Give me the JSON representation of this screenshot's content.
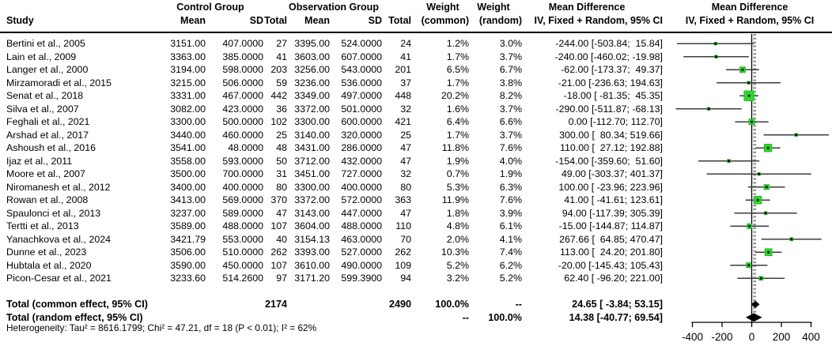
{
  "header": {
    "control_group": "Control Group",
    "observation_group": "Observation Group",
    "weight_common": "Weight",
    "weight_random": "Weight",
    "md_text_title": "Mean Difference",
    "md_plot_title": "Mean Difference",
    "study": "Study",
    "c_mean": "Mean",
    "c_sd": "SD",
    "c_total": "Total",
    "o_mean": "Mean",
    "o_sd": "SD",
    "o_total": "Total",
    "weight_common_sub": "(common)",
    "weight_random_sub": "(random)",
    "md_text_sub": "IV, Fixed + Random, 95% CI",
    "md_plot_sub": "IV, Fixed + Random, 95% CI"
  },
  "rows": [
    {
      "study": "Bertini et al., 2005",
      "cmean": "3151.00",
      "csd": "407.0000",
      "ctotal": "27",
      "omean": "3395.00",
      "osd": "524.0000",
      "ototal": "24",
      "wc": "1.2%",
      "wr": "3.0%",
      "md": "-244.00 [-503.84;  15.84]",
      "est": -244.0,
      "lo": -503.84,
      "hi": 15.84,
      "w": 1.2
    },
    {
      "study": "Lain et al., 2009",
      "cmean": "3363.00",
      "csd": "385.0000",
      "ctotal": "41",
      "omean": "3603.00",
      "osd": "607.0000",
      "ototal": "41",
      "wc": "1.7%",
      "wr": "3.7%",
      "md": "-240.00 [-460.02; -19.98]",
      "est": -240.0,
      "lo": -460.02,
      "hi": -19.98,
      "w": 1.7
    },
    {
      "study": "Langer et al., 2000",
      "cmean": "3194.00",
      "csd": "598.0000",
      "ctotal": "203",
      "omean": "3256.00",
      "osd": "543.0000",
      "ototal": "201",
      "wc": "6.5%",
      "wr": "6.7%",
      "md": " -62.00 [-173.37;  49.37]",
      "est": -62.0,
      "lo": -173.37,
      "hi": 49.37,
      "w": 6.5
    },
    {
      "study": "Mirzamoradi et al., 2015",
      "cmean": "3215.00",
      "csd": "506.0000",
      "ctotal": "59",
      "omean": "3236.00",
      "osd": "536.0000",
      "ototal": "37",
      "wc": "1.7%",
      "wr": "3.8%",
      "md": " -21.00 [-236.63; 194.63]",
      "est": -21.0,
      "lo": -236.63,
      "hi": 194.63,
      "w": 1.7
    },
    {
      "study": "Senat et al., 2018",
      "cmean": "3331.00",
      "csd": "467.0000",
      "ctotal": "442",
      "omean": "3349.00",
      "osd": "497.0000",
      "ototal": "448",
      "wc": "20.2%",
      "wr": "8.2%",
      "md": " -18.00 [ -81.35;  45.35]",
      "est": -18.0,
      "lo": -81.35,
      "hi": 45.35,
      "w": 20.2
    },
    {
      "study": "Silva et al., 2007",
      "cmean": "3082.00",
      "csd": "423.0000",
      "ctotal": "36",
      "omean": "3372.00",
      "osd": "501.0000",
      "ototal": "32",
      "wc": "1.6%",
      "wr": "3.7%",
      "md": "-290.00 [-511.87; -68.13]",
      "est": -290.0,
      "lo": -511.87,
      "hi": -68.13,
      "w": 1.6
    },
    {
      "study": "Feghali et al., 2021",
      "cmean": "3300.00",
      "csd": "500.0000",
      "ctotal": "102",
      "omean": "3300.00",
      "osd": "600.0000",
      "ototal": "421",
      "wc": "6.4%",
      "wr": "6.6%",
      "md": "   0.00 [-112.70; 112.70]",
      "est": 0.0,
      "lo": -112.7,
      "hi": 112.7,
      "w": 6.4
    },
    {
      "study": "Arshad et al., 2017",
      "cmean": "3440.00",
      "csd": "460.0000",
      "ctotal": "25",
      "omean": "3140.00",
      "osd": "320.0000",
      "ototal": "25",
      "wc": "1.7%",
      "wr": "3.7%",
      "md": " 300.00 [  80.34; 519.66]",
      "est": 300.0,
      "lo": 80.34,
      "hi": 519.66,
      "w": 1.7
    },
    {
      "study": "Ashoush et al., 2016",
      "cmean": "3541.00",
      "csd": "48.0000",
      "ctotal": "48",
      "omean": "3431.00",
      "osd": "286.0000",
      "ototal": "47",
      "wc": "11.8%",
      "wr": "7.6%",
      "md": " 110.00 [  27.12; 192.88]",
      "est": 110.0,
      "lo": 27.12,
      "hi": 192.88,
      "w": 11.8
    },
    {
      "study": "Ijaz et al., 2011",
      "cmean": "3558.00",
      "csd": "593.0000",
      "ctotal": "50",
      "omean": "3712.00",
      "osd": "432.0000",
      "ototal": "47",
      "wc": "1.9%",
      "wr": "4.0%",
      "md": "-154.00 [-359.60;  51.60]",
      "est": -154.0,
      "lo": -359.6,
      "hi": 51.6,
      "w": 1.9
    },
    {
      "study": "Moore et al., 2007",
      "cmean": "3500.00",
      "csd": "700.0000",
      "ctotal": "31",
      "omean": "3451.00",
      "osd": "727.0000",
      "ototal": "32",
      "wc": "0.7%",
      "wr": "1.9%",
      "md": "  49.00 [-303.37; 401.37]",
      "est": 49.0,
      "lo": -303.37,
      "hi": 401.37,
      "w": 0.7
    },
    {
      "study": "Niromanesh et al., 2012",
      "cmean": "3400.00",
      "csd": "400.0000",
      "ctotal": "80",
      "omean": "3300.00",
      "osd": "400.0000",
      "ototal": "80",
      "wc": "5.3%",
      "wr": "6.3%",
      "md": " 100.00 [ -23.96; 223.96]",
      "est": 100.0,
      "lo": -23.96,
      "hi": 223.96,
      "w": 5.3
    },
    {
      "study": "Rowan et al., 2008",
      "cmean": "3413.00",
      "csd": "569.0000",
      "ctotal": "370",
      "omean": "3372.00",
      "osd": "572.0000",
      "ototal": "363",
      "wc": "11.9%",
      "wr": "7.6%",
      "md": "  41.00 [ -41.61; 123.61]",
      "est": 41.0,
      "lo": -41.61,
      "hi": 123.61,
      "w": 11.9
    },
    {
      "study": "Spaulonci et al., 2013",
      "cmean": "3237.00",
      "csd": "589.0000",
      "ctotal": "47",
      "omean": "3143.00",
      "osd": "447.0000",
      "ototal": "47",
      "wc": "1.8%",
      "wr": "3.9%",
      "md": "  94.00 [-117.39; 305.39]",
      "est": 94.0,
      "lo": -117.39,
      "hi": 305.39,
      "w": 1.8
    },
    {
      "study": "Tertti et al., 2013",
      "cmean": "3589.00",
      "csd": "488.0000",
      "ctotal": "107",
      "omean": "3604.00",
      "osd": "488.0000",
      "ototal": "110",
      "wc": "4.8%",
      "wr": "6.1%",
      "md": " -15.00 [-144.87; 114.87]",
      "est": -15.0,
      "lo": -144.87,
      "hi": 114.87,
      "w": 4.8
    },
    {
      "study": "Yanachkova et al., 2024",
      "cmean": "3421.79",
      "csd": "553.0000",
      "ctotal": "40",
      "omean": "3154.13",
      "osd": "463.0000",
      "ototal": "70",
      "wc": "2.0%",
      "wr": "4.1%",
      "md": " 267.66 [  64.85; 470.47]",
      "est": 267.66,
      "lo": 64.85,
      "hi": 470.47,
      "w": 2.0
    },
    {
      "study": "Dunne et al., 2023",
      "cmean": "3506.00",
      "csd": "510.0000",
      "ctotal": "262",
      "omean": "3393.00",
      "osd": "527.0000",
      "ototal": "262",
      "wc": "10.3%",
      "wr": "7.4%",
      "md": " 113.00 [  24.20; 201.80]",
      "est": 113.0,
      "lo": 24.2,
      "hi": 201.8,
      "w": 10.3
    },
    {
      "study": "Hubtala et al., 2020",
      "cmean": "3590.00",
      "csd": "450.0000",
      "ctotal": "107",
      "omean": "3610.00",
      "osd": "490.0000",
      "ototal": "109",
      "wc": "5.2%",
      "wr": "6.2%",
      "md": " -20.00 [-145.43; 105.43]",
      "est": -20.0,
      "lo": -145.43,
      "hi": 105.43,
      "w": 5.2
    },
    {
      "study": "Picon-Cesar et al., 2021",
      "cmean": "3233.60",
      "csd": "514.2600",
      "ctotal": "97",
      "omean": "3171.20",
      "osd": "599.3900",
      "ototal": "94",
      "wc": "3.2%",
      "wr": "5.2%",
      "md": "  62.40 [ -96.20; 221.00]",
      "est": 62.4,
      "lo": -96.2,
      "hi": 221.0,
      "w": 3.2
    }
  ],
  "totals": {
    "common": {
      "label": "Total (common effect, 95% CI)",
      "ctotal": "2174",
      "ototal": "2490",
      "wc": "100.0%",
      "wr": "--",
      "md": "24.65 [ -3.84; 53.15]",
      "est": 24.65,
      "lo": -3.84,
      "hi": 53.15
    },
    "random": {
      "label": "Total (random effect, 95% CI)",
      "wc": "--",
      "wr": "100.0%",
      "md": "14.38 [-40.77; 69.54]",
      "est": 14.38,
      "lo": -40.77,
      "hi": 69.54
    }
  },
  "heterogeneity": "Heterogeneity: Tau² = 8616.1799; Chi² = 47.21, df = 18 (P < 0.01); I² = 62%",
  "axis": {
    "ticks": [
      "-400",
      "-200",
      "0",
      "200",
      "400"
    ],
    "tick_values": [
      -400,
      -200,
      0,
      200,
      400
    ]
  },
  "colors": {
    "square": "#2ED42E",
    "square_border": "#14B414",
    "ci_line": "#3d3d3d",
    "diamond": "#000000",
    "ref_line": "#000000",
    "dashed_line": "#3a3a3a"
  },
  "chart_data": {
    "type": "scatter",
    "subtype": "forest-plot",
    "title": "Mean Difference, IV, Fixed + Random, 95% CI",
    "xlabel": "",
    "xlim": [
      -400,
      400
    ],
    "x_ticks": [
      -400,
      -200,
      0,
      200,
      400
    ],
    "reference_line": 0,
    "studies": [
      "Bertini et al., 2005",
      "Lain et al., 2009",
      "Langer et al., 2000",
      "Mirzamoradi et al., 2015",
      "Senat et al., 2018",
      "Silva et al., 2007",
      "Feghali et al., 2021",
      "Arshad et al., 2017",
      "Ashoush et al., 2016",
      "Ijaz et al., 2011",
      "Moore et al., 2007",
      "Niromanesh et al., 2012",
      "Rowan et al., 2008",
      "Spaulonci et al., 2013",
      "Tertti et al., 2013",
      "Yanachkova et al., 2024",
      "Dunne et al., 2023",
      "Hubtala et al., 2020",
      "Picon-Cesar et al., 2021"
    ],
    "mean_difference": [
      -244.0,
      -240.0,
      -62.0,
      -21.0,
      -18.0,
      -290.0,
      0.0,
      300.0,
      110.0,
      -154.0,
      49.0,
      100.0,
      41.0,
      94.0,
      -15.0,
      267.66,
      113.0,
      -20.0,
      62.4
    ],
    "ci_lower": [
      -503.84,
      -460.02,
      -173.37,
      -236.63,
      -81.35,
      -511.87,
      -112.7,
      80.34,
      27.12,
      -359.6,
      -303.37,
      -23.96,
      -41.61,
      -117.39,
      -144.87,
      64.85,
      24.2,
      -145.43,
      -96.2
    ],
    "ci_upper": [
      15.84,
      -19.98,
      49.37,
      194.63,
      45.35,
      -68.13,
      112.7,
      519.66,
      192.88,
      51.6,
      401.37,
      223.96,
      123.61,
      305.39,
      114.87,
      470.47,
      201.8,
      105.43,
      221.0
    ],
    "weight_common_pct": [
      1.2,
      1.7,
      6.5,
      1.7,
      20.2,
      1.6,
      6.4,
      1.7,
      11.8,
      1.9,
      0.7,
      5.3,
      11.9,
      1.8,
      4.8,
      2.0,
      10.3,
      5.2,
      3.2
    ],
    "weight_random_pct": [
      3.0,
      3.7,
      6.7,
      3.8,
      8.2,
      3.7,
      6.6,
      3.7,
      7.6,
      4.0,
      1.9,
      6.3,
      7.6,
      3.9,
      6.1,
      4.1,
      7.4,
      6.2,
      5.2
    ],
    "summaries": [
      {
        "name": "Total (common effect, 95% CI)",
        "mean": 24.65,
        "ci": [
          -3.84,
          53.15
        ]
      },
      {
        "name": "Total (random effect, 95% CI)",
        "mean": 14.38,
        "ci": [
          -40.77,
          69.54
        ]
      }
    ],
    "heterogeneity": {
      "tau2": 8616.1799,
      "chi2": 47.21,
      "df": 18,
      "p": "< 0.01",
      "i2": "62%"
    }
  }
}
